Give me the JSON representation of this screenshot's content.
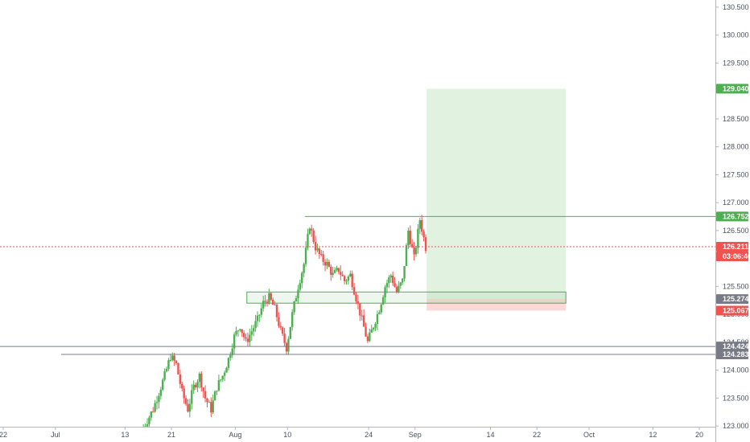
{
  "chart_data": {
    "type": "candlestick",
    "y_axis": {
      "position": "right",
      "ylim": [
        122.8,
        130.6
      ],
      "ticks": [
        "123.000",
        "123.500",
        "124.000",
        "124.500",
        "125.000",
        "125.500",
        "126.000",
        "126.500",
        "127.000",
        "127.500",
        "128.000",
        "128.500",
        "129.000",
        "129.500",
        "130.000",
        "130.500"
      ]
    },
    "x_axis": {
      "ticks": [
        "22",
        "Jul",
        "13",
        "21",
        "Aug",
        "10",
        "24",
        "Sep",
        "14",
        "22",
        "Oct",
        "12",
        "20"
      ]
    },
    "price_tags": [
      {
        "id": "target",
        "text": "129.040",
        "value": 129.04,
        "color": "#4caf50"
      },
      {
        "id": "resistance",
        "text": "126.752",
        "value": 126.752,
        "color": "#4caf50"
      },
      {
        "id": "last-price",
        "text": "126.211",
        "value": 126.211,
        "color": "#ef5350"
      },
      {
        "id": "countdown",
        "text": "03:06:46",
        "value": 126.211,
        "color": "#ef5350",
        "below": true
      },
      {
        "id": "entry",
        "text": "125.274",
        "value": 125.274,
        "color": "#787b86"
      },
      {
        "id": "stop",
        "text": "125.067",
        "value": 125.067,
        "color": "#ef5350"
      },
      {
        "id": "support-1",
        "text": "124.424",
        "value": 124.424,
        "color": "#787b86"
      },
      {
        "id": "support-2",
        "text": "124.283",
        "value": 124.283,
        "color": "#787b86"
      }
    ],
    "horizontal_lines": [
      {
        "value": 126.752,
        "color": "#4caf50",
        "from": "Aug 13"
      },
      {
        "value": 124.424,
        "color": "#787b86",
        "from": "start"
      },
      {
        "value": 124.283,
        "color": "#787b86",
        "from": "Jul 2"
      },
      {
        "value": 126.211,
        "color": "#ef5350",
        "dotted": true,
        "from": "start"
      }
    ],
    "position_tool": {
      "entry": 125.274,
      "target": 129.04,
      "stop": 125.067,
      "start": "Sep 3",
      "end": "Sep 27"
    },
    "zone": {
      "top": 125.4,
      "bottom": 125.2,
      "start": "Aug 3",
      "end": "Sep 27",
      "color": "#4caf50"
    },
    "up_color": "#4caf50",
    "down_color": "#ef5350",
    "price_path": [
      {
        "date": "Jul 16",
        "value": 122.9
      },
      {
        "date": "Jul 17",
        "value": 123.1
      },
      {
        "date": "Jul 18",
        "value": 123.3
      },
      {
        "date": "Jul 19",
        "value": 123.6
      },
      {
        "date": "Jul 20",
        "value": 123.9
      },
      {
        "date": "Jul 21",
        "value": 124.25
      },
      {
        "date": "Jul 22",
        "value": 124.1
      },
      {
        "date": "Jul 23",
        "value": 123.6
      },
      {
        "date": "Jul 24",
        "value": 123.3
      },
      {
        "date": "Jul 25",
        "value": 123.7
      },
      {
        "date": "Jul 26",
        "value": 123.9
      },
      {
        "date": "Jul 27",
        "value": 123.5
      },
      {
        "date": "Jul 28",
        "value": 123.3
      },
      {
        "date": "Jul 29",
        "value": 123.7
      },
      {
        "date": "Jul 30",
        "value": 123.9
      },
      {
        "date": "Jul 31",
        "value": 124.2
      },
      {
        "date": "Aug 1",
        "value": 124.6
      },
      {
        "date": "Aug 2",
        "value": 124.8
      },
      {
        "date": "Aug 3",
        "value": 124.5
      },
      {
        "date": "Aug 4",
        "value": 124.7
      },
      {
        "date": "Aug 5",
        "value": 124.9
      },
      {
        "date": "Aug 6",
        "value": 125.2
      },
      {
        "date": "Aug 7",
        "value": 125.3
      },
      {
        "date": "Aug 8",
        "value": 125.1
      },
      {
        "date": "Aug 9",
        "value": 124.7
      },
      {
        "date": "Aug 10",
        "value": 124.4
      },
      {
        "date": "Aug 11",
        "value": 125.0
      },
      {
        "date": "Aug 12",
        "value": 125.5
      },
      {
        "date": "Aug 13",
        "value": 125.9
      },
      {
        "date": "Aug 14",
        "value": 126.6
      },
      {
        "date": "Aug 15",
        "value": 126.2
      },
      {
        "date": "Aug 16",
        "value": 126.0
      },
      {
        "date": "Aug 17",
        "value": 125.9
      },
      {
        "date": "Aug 18",
        "value": 125.7
      },
      {
        "date": "Aug 19",
        "value": 125.8
      },
      {
        "date": "Aug 20",
        "value": 125.6
      },
      {
        "date": "Aug 21",
        "value": 125.7
      },
      {
        "date": "Aug 22",
        "value": 125.3
      },
      {
        "date": "Aug 23",
        "value": 124.9
      },
      {
        "date": "Aug 24",
        "value": 124.5
      },
      {
        "date": "Aug 25",
        "value": 124.8
      },
      {
        "date": "Aug 26",
        "value": 125.1
      },
      {
        "date": "Aug 27",
        "value": 125.5
      },
      {
        "date": "Aug 28",
        "value": 125.7
      },
      {
        "date": "Aug 29",
        "value": 125.4
      },
      {
        "date": "Aug 30",
        "value": 125.6
      },
      {
        "date": "Aug 31",
        "value": 126.5
      },
      {
        "date": "Sep 1",
        "value": 126.0
      },
      {
        "date": "Sep 2",
        "value": 126.7
      },
      {
        "date": "Sep 3",
        "value": 126.2
      }
    ]
  }
}
